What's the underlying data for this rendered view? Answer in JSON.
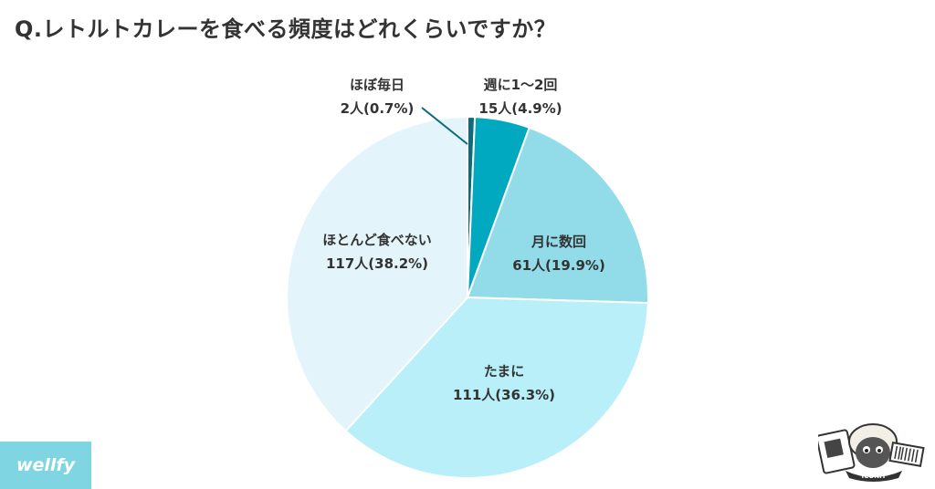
{
  "title": "Q.レトルトカレーを食べる頻度はどれくらいですか？",
  "brand": "wellfy",
  "mascot_text": "ICONIT",
  "chart_data": {
    "type": "pie",
    "title": "Q.レトルトカレーを食べる頻度はどれくらいですか？",
    "slices": [
      {
        "label": "ほぼ毎日",
        "value_text": "2人(0.7%)",
        "count": 2,
        "percent": 0.7,
        "color": "#0e6b7a"
      },
      {
        "label": "週に1〜2回",
        "value_text": "15人(4.9%)",
        "count": 15,
        "percent": 4.9,
        "color": "#00a9bf"
      },
      {
        "label": "月に数回",
        "value_text": "61人(19.9%)",
        "count": 61,
        "percent": 19.9,
        "color": "#92dbe8"
      },
      {
        "label": "たまに",
        "value_text": "111人(36.3%)",
        "count": 111,
        "percent": 36.3,
        "color": "#b8eff9"
      },
      {
        "label": "ほとんど食べない",
        "value_text": "117人(38.2%)",
        "count": 117,
        "percent": 38.2,
        "color": "#e3f5fa"
      }
    ]
  }
}
